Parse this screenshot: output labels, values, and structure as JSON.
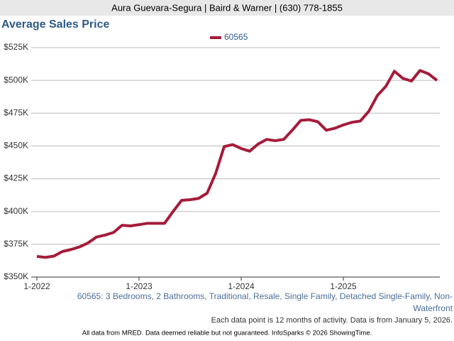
{
  "header": "Aura Guevara-Segura | Baird & Warner | (630) 778-1855",
  "chart_data": {
    "type": "line",
    "title": "Average Sales Price",
    "categories": [
      "1-2022",
      null,
      null,
      null,
      null,
      null,
      null,
      null,
      null,
      null,
      null,
      null,
      "1-2023",
      null,
      null,
      null,
      null,
      null,
      null,
      null,
      null,
      null,
      null,
      null,
      "1-2024",
      null,
      null,
      null,
      null,
      null,
      null,
      null,
      null,
      null,
      null,
      null,
      "1-2025",
      null,
      null,
      null,
      null,
      null,
      null,
      null,
      null,
      null,
      null,
      null
    ],
    "series": [
      {
        "name": "60565",
        "color": "#a51c3a",
        "values": [
          365800,
          365000,
          366000,
          369500,
          371000,
          373000,
          376000,
          380500,
          382000,
          384000,
          389500,
          389000,
          390000,
          391000,
          391000,
          391000,
          400000,
          408500,
          409000,
          410000,
          414000,
          429000,
          449500,
          451000,
          448000,
          446000,
          451500,
          455000,
          454000,
          455000,
          462000,
          469500,
          470000,
          468500,
          462000,
          463500,
          466000,
          468000,
          469000,
          476500,
          488500,
          495500,
          507000,
          501500,
          499500,
          507500,
          505000,
          500000
        ]
      }
    ],
    "ylim": [
      350000,
      525000
    ],
    "yticks": [
      {
        "value": 350000,
        "label": "$350K"
      },
      {
        "value": 375000,
        "label": "$375K"
      },
      {
        "value": 400000,
        "label": "$400K"
      },
      {
        "value": 425000,
        "label": "$425K"
      },
      {
        "value": 450000,
        "label": "$450K"
      },
      {
        "value": 475000,
        "label": "$475K"
      },
      {
        "value": 500000,
        "label": "$500K"
      },
      {
        "value": 525000,
        "label": "$525K"
      }
    ],
    "grid": true,
    "legend": "top",
    "description": "60565: 3 Bedrooms, 2 Bathrooms, Traditional, Resale, Single Family, Detached Single-Family, Non-Waterfront",
    "note": "Each data point is 12 months of activity. Data is from January 5, 2026.",
    "source": "All data from MRED. Data deemed reliable but not guaranteed. InfoSparks © 2026 ShowingTime."
  }
}
